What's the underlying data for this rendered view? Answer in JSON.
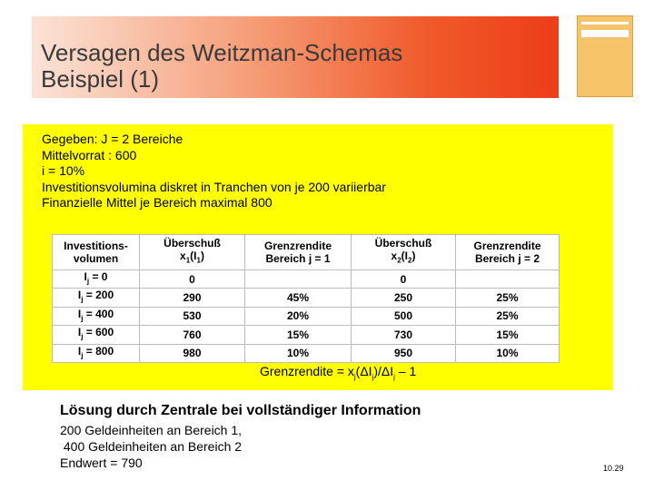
{
  "title": [
    "Versagen des Weitzman-Schemas",
    "Beispiel (1)"
  ],
  "given": [
    "Gegeben: J = 2 Bereiche",
    "Mittelvorrat : 600",
    "i = 10%",
    "Investitionsvolumina diskret in Tranchen von je 200 variierbar",
    "Finanzielle Mittel je Bereich maximal 800"
  ],
  "table": {
    "header": [
      [
        [
          "Investitions-"
        ],
        [
          "volumen"
        ]
      ],
      [
        [
          "Überschuß"
        ],
        [
          "x",
          "1",
          "(I",
          "1",
          ")"
        ]
      ],
      [
        [
          "Grenzrendite"
        ],
        [
          "Bereich j = 1"
        ]
      ],
      [
        [
          "Überschuß"
        ],
        [
          "x",
          "2",
          "(I",
          "2",
          ")"
        ]
      ],
      [
        [
          "Grenzrendite"
        ],
        [
          "Bereich j = 2"
        ]
      ]
    ],
    "rows": [
      [
        [
          "I",
          "j",
          " = 0"
        ],
        "0",
        null,
        "0",
        null
      ],
      [
        [
          "I",
          "j",
          " = 200"
        ],
        "290",
        "45%",
        "250",
        "25%"
      ],
      [
        [
          "I",
          "j",
          " = 400"
        ],
        "530",
        "20%",
        "500",
        "25%"
      ],
      [
        [
          "I",
          "j",
          " = 600"
        ],
        "760",
        "15%",
        "730",
        "15%"
      ],
      [
        [
          "I",
          "j",
          " = 800"
        ],
        "980",
        "10%",
        "950",
        "10%"
      ]
    ]
  },
  "formula": [
    "Grenzrendite = x",
    "j",
    "(ΔI",
    "j",
    ")/ΔI",
    "j",
    " – 1"
  ],
  "solution": {
    "heading": "Lösung durch Zentrale bei vollständiger Information",
    "lines": [
      "200 Geldeinheiten an Bereich 1,",
      " 400 Geldeinheiten an Bereich 2",
      "Endwert = 790"
    ]
  },
  "page_number": "10.29"
}
